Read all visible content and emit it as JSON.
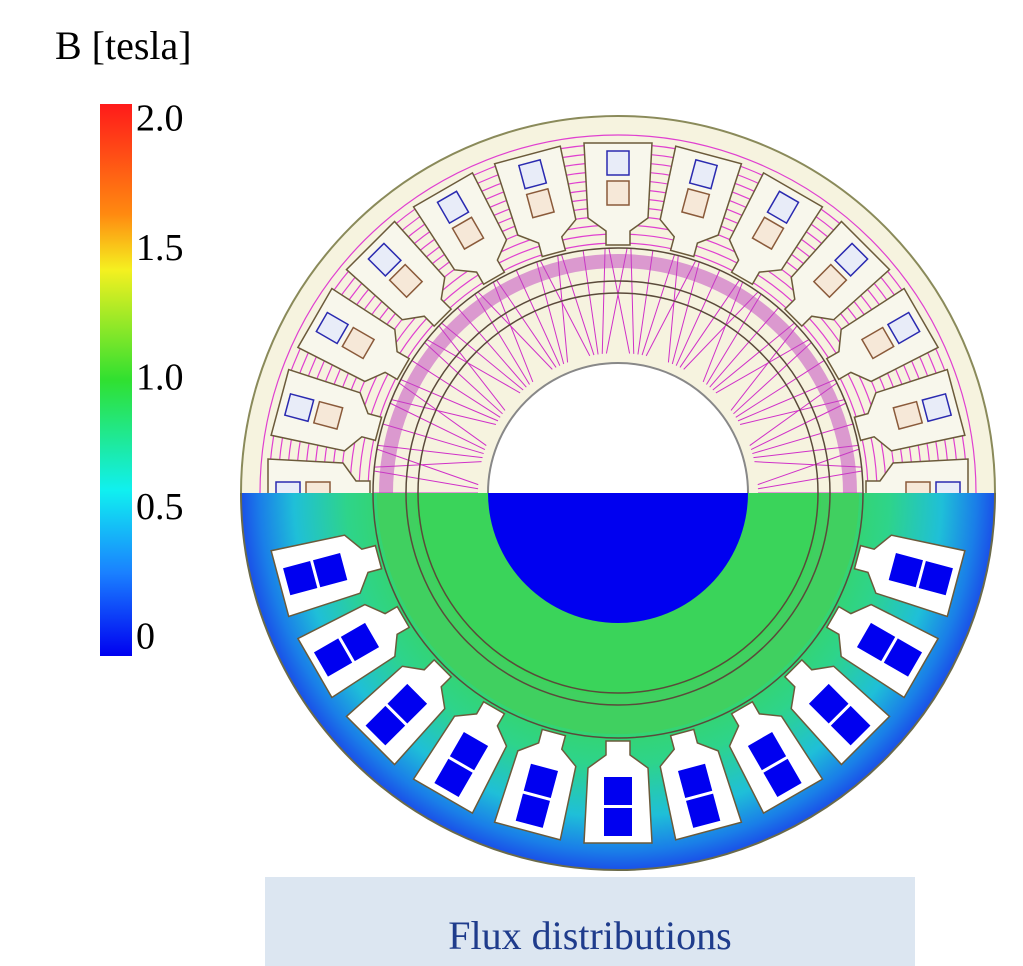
{
  "colorbar": {
    "title": "B [tesla]",
    "ticks": [
      {
        "value": 2.0,
        "label": "2.0"
      },
      {
        "value": 1.5,
        "label": "1.5"
      },
      {
        "value": 1.0,
        "label": "1.0"
      },
      {
        "value": 0.5,
        "label": "0.5"
      },
      0
    ]
  },
  "caption": "Flux distributions"
}
